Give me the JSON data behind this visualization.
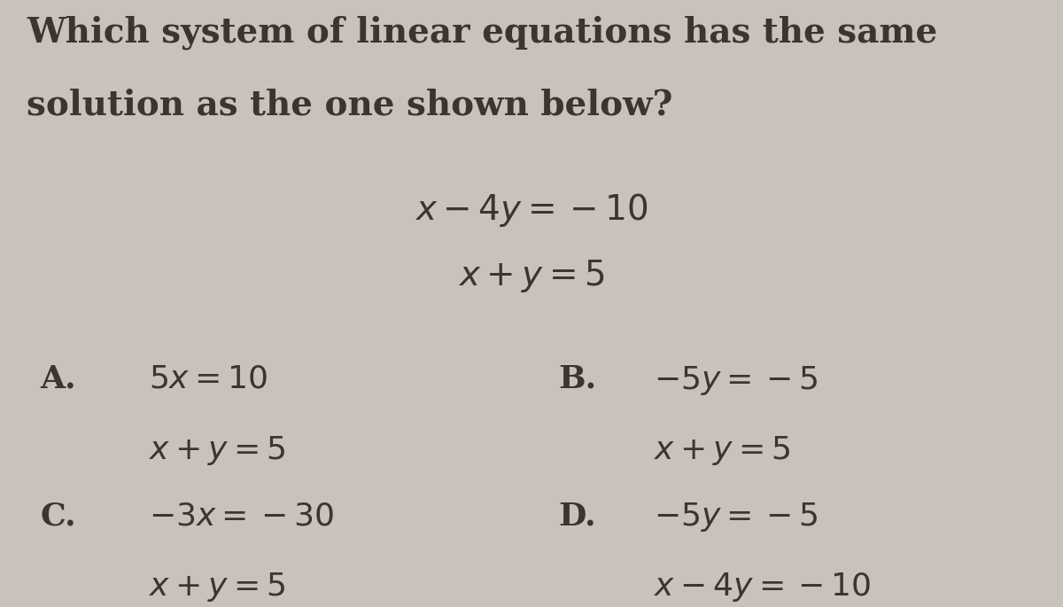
{
  "background_color": "#c9c2bb",
  "title_line1": "Which system of linear equations has the same",
  "title_line2": "solution as the one shown below?",
  "system_eq1": "$x-4y=-10$",
  "system_eq2": "$x+y=5$",
  "option_A_label": "A.",
  "option_A_eq1": "$5x=10$",
  "option_A_eq2": "$x+y=5$",
  "option_B_label": "B.",
  "option_B_eq1": "$-5y=-5$",
  "option_B_eq2": "$x+y=5$",
  "option_C_label": "C.",
  "option_C_eq1": "$-3x=-30$",
  "option_C_eq2": "$x+y=5$",
  "option_D_label": "D.",
  "option_D_eq1": "$-5y=-5$",
  "option_D_eq2": "$x-4y=-10$",
  "title_fontsize": 28,
  "eq_fontsize": 26,
  "label_fontsize": 26,
  "text_color": "#3a3530"
}
